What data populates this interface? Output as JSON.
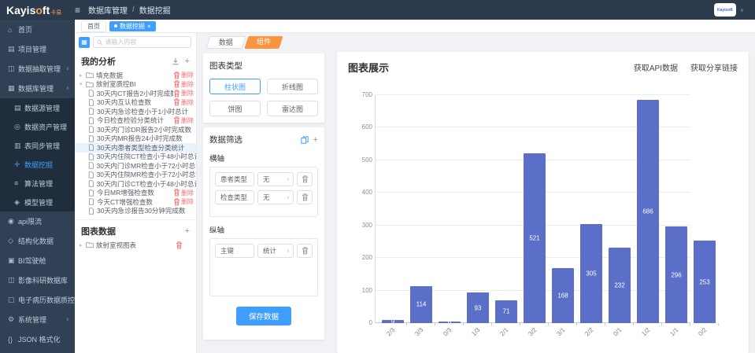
{
  "header": {
    "brand_a": "Kayis",
    "brand_o": "o",
    "brand_b": "ft",
    "brand_suffix": "卡易",
    "breadcrumb": [
      "数据库管理",
      "数据挖掘"
    ],
    "avatar_text": "Kayisoft"
  },
  "sidebar": {
    "items": [
      {
        "icon": "home-icon",
        "glyph": "⌂",
        "label": "首页"
      },
      {
        "icon": "project-icon",
        "glyph": "▤",
        "label": "项目管理"
      },
      {
        "icon": "extract-icon",
        "glyph": "◫",
        "label": "数据抽取管理",
        "caret": "∨"
      },
      {
        "icon": "database-icon",
        "glyph": "▦",
        "label": "数据库管理",
        "caret": "∧",
        "children": [
          {
            "icon": "datasource-icon",
            "glyph": "▤",
            "label": "数据源管理"
          },
          {
            "icon": "asset-icon",
            "glyph": "◎",
            "label": "数据资产管理"
          },
          {
            "icon": "table-sync-icon",
            "glyph": "▥",
            "label": "表同步管理"
          },
          {
            "icon": "mining-icon",
            "glyph": "✛",
            "label": "数据挖掘",
            "active": true
          },
          {
            "icon": "algorithm-icon",
            "glyph": "≡",
            "label": "算法管理"
          },
          {
            "icon": "model-icon",
            "glyph": "◈",
            "label": "模型管理"
          }
        ]
      },
      {
        "icon": "api-icon",
        "glyph": "◉",
        "label": "api限流"
      },
      {
        "icon": "structured-icon",
        "glyph": "◇",
        "label": "结构化数据"
      },
      {
        "icon": "bi-icon",
        "glyph": "▣",
        "label": "BI驾驶舱"
      },
      {
        "icon": "imaging-icon",
        "glyph": "◫",
        "label": "影像科研数据库"
      },
      {
        "icon": "emr-icon",
        "glyph": "▢",
        "label": "电子病历数据质控"
      },
      {
        "icon": "system-icon",
        "glyph": "⚙",
        "label": "系统管理",
        "caret": "∨"
      },
      {
        "icon": "json-icon",
        "glyph": "{}",
        "label": "JSON 格式化"
      }
    ]
  },
  "tabs": {
    "home": "首页",
    "active": "数据挖掘",
    "close": "×"
  },
  "tree_panel": {
    "search_placeholder": "请输入内容",
    "title": "我的分析",
    "delete_label": "删除",
    "nodes": [
      {
        "type": "folder",
        "caret": "right",
        "label": "填充数据",
        "delete": true
      },
      {
        "type": "folder",
        "caret": "down",
        "label": "放射室质控BI",
        "delete": true
      },
      {
        "type": "file",
        "label": "30天内CT报告2小时完成数",
        "delete": true
      },
      {
        "type": "file",
        "label": "30天内互认检查数",
        "delete": true
      },
      {
        "type": "file",
        "label": "30天内急诊检查小于1小时总计"
      },
      {
        "type": "file",
        "label": "今日检查检验分类统计",
        "delete": true
      },
      {
        "type": "file",
        "label": "30天内门诊DR报告2小时完成数"
      },
      {
        "type": "file",
        "label": "30天内MR报告24小时完成数"
      },
      {
        "type": "file",
        "label": "30天内患者类型检查分类统计",
        "selected": true
      },
      {
        "type": "file",
        "label": "30天内住院CT检查小于48小时总计"
      },
      {
        "type": "file",
        "label": "30天内门诊MR检查小于72小时总计"
      },
      {
        "type": "file",
        "label": "30天内住院MR检查小于72小时总计"
      },
      {
        "type": "file",
        "label": "30天内门诊CT检查小于48小时总计"
      },
      {
        "type": "file",
        "label": "今日MR增强检查数",
        "delete": true
      },
      {
        "type": "file",
        "label": "今天CT增强检查数",
        "delete": true
      },
      {
        "type": "file",
        "label": "30天内急诊报告30分钟完成数"
      }
    ],
    "chart_data_section": {
      "title": "图表数据",
      "item": "放射室视图表"
    }
  },
  "config_panel": {
    "tabs": [
      "数据",
      "组件"
    ],
    "chart_type": {
      "title": "图表类型",
      "options": [
        "柱状图",
        "折线图",
        "饼图",
        "雷达图"
      ],
      "selected": "柱状图"
    },
    "data_filter_title": "数据筛选",
    "x_axis": {
      "title": "横轴",
      "none_label": "无",
      "rows": [
        {
          "field": "患者类型",
          "agg": "无"
        },
        {
          "field": "检查类型",
          "agg": "无"
        }
      ]
    },
    "y_axis": {
      "title": "纵轴",
      "rows": [
        {
          "field": "主键",
          "agg": "统计"
        }
      ]
    },
    "save_button": "保存数据"
  },
  "chart_panel": {
    "title": "图表展示",
    "links": [
      "获取API数据",
      "获取分享链接"
    ]
  },
  "chart_data": {
    "type": "bar",
    "title": "",
    "xlabel": "",
    "ylabel": "",
    "categories": [
      "2/3",
      "3/3",
      "0/3",
      "1/3",
      "2/1",
      "3/2",
      "3/1",
      "2/2",
      "0/1",
      "1/2",
      "1/1",
      "0/2"
    ],
    "values": [
      9,
      114,
      6,
      93,
      71,
      521,
      168,
      305,
      232,
      686,
      296,
      253
    ],
    "ylim": [
      0,
      700
    ],
    "y_ticks": [
      0,
      100,
      200,
      300,
      400,
      500,
      600,
      700
    ],
    "bar_color": "#5b6ec8",
    "grid": true,
    "legend_position": "none"
  }
}
